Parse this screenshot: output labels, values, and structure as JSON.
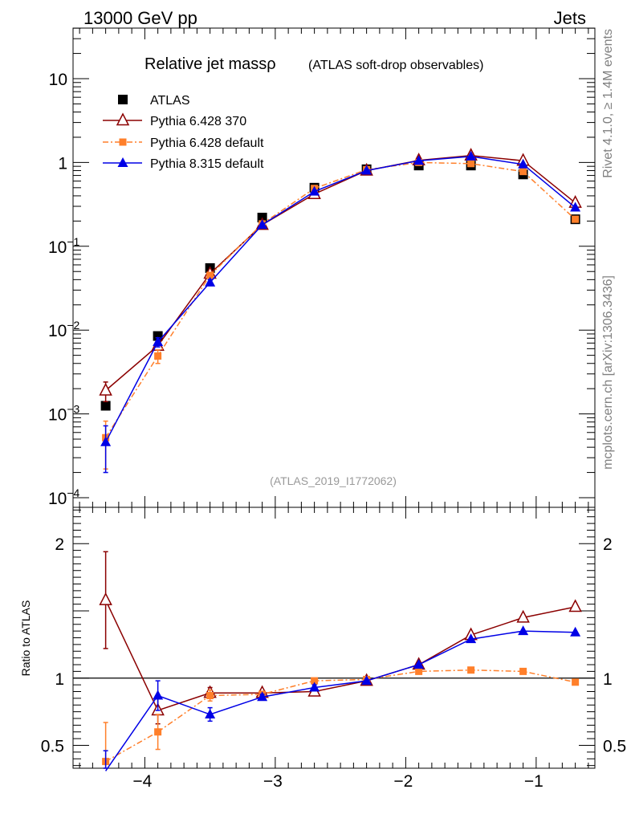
{
  "header": {
    "left": "13000 GeV pp",
    "right": "Jets"
  },
  "side_labels": {
    "top": "Rivet 4.1.0, ≥ 1.4M events",
    "bottom": "mcplots.cern.ch [arXiv:1306.3436]"
  },
  "watermark": "(ATLAS_2019_I1772062)",
  "colors": {
    "atlas": "#000000",
    "py6_370": "#8b0000",
    "py6_default": "#ff7f2a",
    "py8_default": "#0000e6"
  },
  "chart_data": [
    {
      "type": "line",
      "title": "Relative jet massρ",
      "subtitle": "(ATLAS soft-drop observables)",
      "xlabel": "",
      "ylabel": "",
      "yscale": "log",
      "xlim": [
        -4.55,
        -0.55
      ],
      "ylim": [
        0.0001,
        40
      ],
      "x": [
        -4.3,
        -3.9,
        -3.5,
        -3.1,
        -2.7,
        -2.3,
        -1.9,
        -1.5,
        -1.1,
        -0.7
      ],
      "x_ticks": [
        {
          "value": -4,
          "label": "−4"
        },
        {
          "value": -3,
          "label": "−3"
        },
        {
          "value": -2,
          "label": "−2"
        },
        {
          "value": -1,
          "label": "−1"
        }
      ],
      "y_ticks": [
        {
          "value": 10,
          "base": "10",
          "exp": ""
        },
        {
          "value": 1,
          "base": "1",
          "exp": ""
        },
        {
          "value": 0.1,
          "base": "10",
          "exp": "−1"
        },
        {
          "value": 0.01,
          "base": "10",
          "exp": "−2"
        },
        {
          "value": 0.001,
          "base": "10",
          "exp": "−3"
        },
        {
          "value": 0.0001,
          "base": "10",
          "exp": "−4"
        }
      ],
      "legend": {
        "entries": [
          "ATLAS",
          "Pythia 6.428 370",
          "Pythia 6.428 default",
          "Pythia 8.315 default"
        ]
      },
      "series": [
        {
          "name": "ATLAS",
          "key": "atlas",
          "marker": "square",
          "line": "none",
          "values": [
            0.00125,
            0.0085,
            0.055,
            0.22,
            0.5,
            0.83,
            0.92,
            0.92,
            0.72,
            0.21
          ],
          "err": [
            0,
            0,
            0,
            0,
            0,
            0,
            0,
            0,
            0,
            0
          ]
        },
        {
          "name": "Pythia 6.428 370",
          "key": "py6_370",
          "marker": "triangle-open",
          "line": "solid",
          "values": [
            0.0019,
            0.0065,
            0.047,
            0.18,
            0.42,
            0.8,
            1.06,
            1.21,
            1.05,
            0.33
          ],
          "err": [
            0.0005,
            0.0007,
            0.003,
            0.006,
            0.01,
            0.015,
            0.02,
            0.02,
            0.02,
            0.01
          ]
        },
        {
          "name": "Pythia 6.428 default",
          "key": "py6_default",
          "marker": "square-small",
          "line": "dashdot",
          "values": [
            0.00052,
            0.0049,
            0.045,
            0.185,
            0.49,
            0.82,
            1.0,
            0.97,
            0.78,
            0.21
          ],
          "err": [
            0.0003,
            0.0009,
            0.003,
            0.006,
            0.01,
            0.015,
            0.02,
            0.02,
            0.02,
            0.01
          ]
        },
        {
          "name": "Pythia 8.315 default",
          "key": "py8_default",
          "marker": "triangle",
          "line": "solid",
          "values": [
            0.00046,
            0.0072,
            0.037,
            0.18,
            0.45,
            0.8,
            1.05,
            1.18,
            0.95,
            0.29
          ],
          "err": [
            0.00026,
            0.0009,
            0.003,
            0.006,
            0.01,
            0.015,
            0.02,
            0.02,
            0.02,
            0.01
          ]
        }
      ]
    },
    {
      "type": "line",
      "title": "",
      "xlabel": "",
      "ylabel": "Ratio to ATLAS",
      "xlim": [
        -4.55,
        -0.55
      ],
      "ylim": [
        0.33,
        2.27
      ],
      "x": [
        -4.3,
        -3.9,
        -3.5,
        -3.1,
        -2.7,
        -2.3,
        -1.9,
        -1.5,
        -1.1,
        -0.7
      ],
      "x_ticks": [
        {
          "value": -4,
          "label": "−4"
        },
        {
          "value": -3,
          "label": "−3"
        },
        {
          "value": -2,
          "label": "−2"
        },
        {
          "value": -1,
          "label": "−1"
        }
      ],
      "y_ticks": [
        {
          "value": 2,
          "label": "2"
        },
        {
          "value": 1,
          "label": "1"
        },
        {
          "value": 0.5,
          "label": "0.5"
        }
      ],
      "reference_line": 1,
      "series": [
        {
          "name": "Pythia 6.428 370",
          "key": "py6_370",
          "marker": "triangle-open",
          "line": "solid",
          "values": [
            1.58,
            0.76,
            0.89,
            0.89,
            0.9,
            0.98,
            1.1,
            1.32,
            1.45,
            1.53
          ],
          "err": [
            0.36,
            0.1,
            0.04,
            0.02,
            0.02,
            0.01,
            0.01,
            0.01,
            0.01,
            0.01
          ]
        },
        {
          "name": "Pythia 6.428 default",
          "key": "py6_default",
          "marker": "square-small",
          "line": "dashdot",
          "values": [
            0.38,
            0.6,
            0.87,
            0.88,
            0.98,
            0.99,
            1.05,
            1.06,
            1.05,
            0.97
          ],
          "err": [
            0.29,
            0.13,
            0.04,
            0.02,
            0.02,
            0.01,
            0.01,
            0.01,
            0.01,
            0.01
          ]
        },
        {
          "name": "Pythia 8.315 default",
          "key": "py8_default",
          "marker": "triangle",
          "line": "solid",
          "values": [
            0.31,
            0.87,
            0.73,
            0.86,
            0.93,
            0.98,
            1.1,
            1.29,
            1.35,
            1.34
          ],
          "err": [
            0.15,
            0.11,
            0.05,
            0.02,
            0.02,
            0.01,
            0.01,
            0.01,
            0.01,
            0.01
          ]
        }
      ]
    }
  ]
}
